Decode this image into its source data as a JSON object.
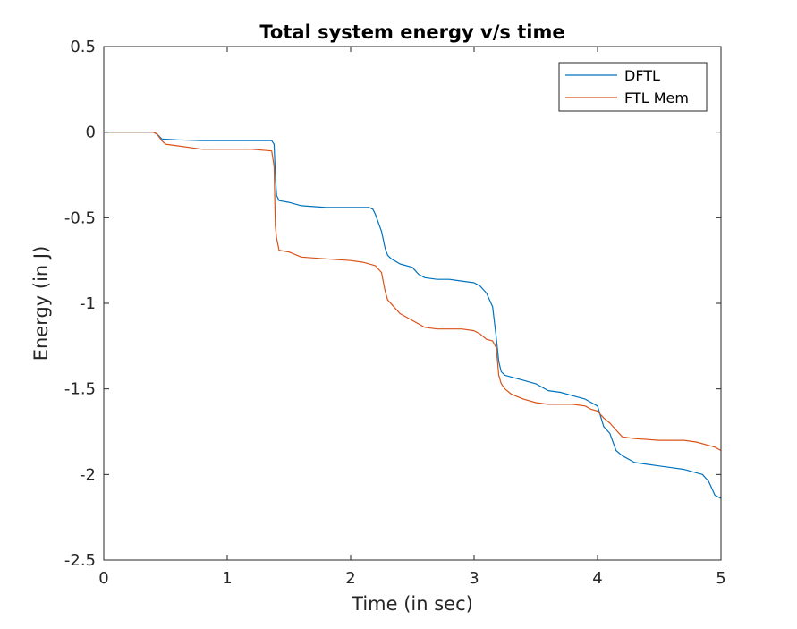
{
  "chart_data": {
    "type": "line",
    "title": "Total system energy v/s time",
    "xlabel": "Time (in sec)",
    "ylabel": "Energy (in J)",
    "xlim": [
      0,
      5
    ],
    "ylim": [
      -2.5,
      0.5
    ],
    "xticks": [
      0,
      1,
      2,
      3,
      4,
      5
    ],
    "yticks": [
      0.5,
      0,
      -0.5,
      -1,
      -1.5,
      -2,
      -2.5
    ],
    "xtick_labels": [
      "0",
      "1",
      "2",
      "3",
      "4",
      "5"
    ],
    "ytick_labels": [
      "0.5",
      "0",
      "-0.5",
      "-1",
      "-1.5",
      "-2",
      "-2.5"
    ],
    "grid": false,
    "legend_position": "top-right",
    "series": [
      {
        "name": "DFTL",
        "color": "#0072BD",
        "x": [
          0,
          0.4,
          0.43,
          0.47,
          0.6,
          0.8,
          1.0,
          1.2,
          1.36,
          1.38,
          1.39,
          1.4,
          1.42,
          1.5,
          1.6,
          1.8,
          2.0,
          2.15,
          2.18,
          2.2,
          2.25,
          2.28,
          2.3,
          2.33,
          2.4,
          2.5,
          2.55,
          2.6,
          2.7,
          2.8,
          2.9,
          3.0,
          3.05,
          3.1,
          3.15,
          3.18,
          3.2,
          3.22,
          3.25,
          3.3,
          3.4,
          3.5,
          3.6,
          3.7,
          3.8,
          3.9,
          3.95,
          4.0,
          4.05,
          4.1,
          4.15,
          4.2,
          4.3,
          4.4,
          4.5,
          4.6,
          4.7,
          4.8,
          4.85,
          4.9,
          4.95,
          5.0
        ],
        "y": [
          0,
          0,
          -0.01,
          -0.04,
          -0.045,
          -0.05,
          -0.05,
          -0.05,
          -0.05,
          -0.07,
          -0.25,
          -0.37,
          -0.4,
          -0.41,
          -0.43,
          -0.44,
          -0.44,
          -0.44,
          -0.45,
          -0.48,
          -0.58,
          -0.68,
          -0.72,
          -0.74,
          -0.77,
          -0.79,
          -0.83,
          -0.85,
          -0.86,
          -0.86,
          -0.87,
          -0.88,
          -0.9,
          -0.94,
          -1.02,
          -1.2,
          -1.34,
          -1.4,
          -1.42,
          -1.43,
          -1.45,
          -1.47,
          -1.51,
          -1.52,
          -1.54,
          -1.56,
          -1.58,
          -1.6,
          -1.72,
          -1.76,
          -1.86,
          -1.89,
          -1.93,
          -1.94,
          -1.95,
          -1.96,
          -1.97,
          -1.99,
          -2.0,
          -2.04,
          -2.12,
          -2.14
        ]
      },
      {
        "name": "FTL Mem",
        "color": "#D95319",
        "x": [
          0,
          0.4,
          0.43,
          0.47,
          0.5,
          0.6,
          0.8,
          1.0,
          1.2,
          1.36,
          1.38,
          1.39,
          1.4,
          1.42,
          1.5,
          1.6,
          1.8,
          2.0,
          2.1,
          2.2,
          2.25,
          2.28,
          2.3,
          2.35,
          2.4,
          2.5,
          2.6,
          2.7,
          2.8,
          2.9,
          3.0,
          3.05,
          3.1,
          3.15,
          3.18,
          3.2,
          3.22,
          3.25,
          3.3,
          3.4,
          3.5,
          3.6,
          3.7,
          3.8,
          3.9,
          3.95,
          4.0,
          4.05,
          4.1,
          4.15,
          4.2,
          4.3,
          4.5,
          4.7,
          4.8,
          4.9,
          4.95,
          5.0
        ],
        "y": [
          0,
          0,
          -0.01,
          -0.05,
          -0.07,
          -0.08,
          -0.1,
          -0.1,
          -0.1,
          -0.11,
          -0.2,
          -0.55,
          -0.62,
          -0.69,
          -0.7,
          -0.73,
          -0.74,
          -0.75,
          -0.76,
          -0.78,
          -0.82,
          -0.93,
          -0.98,
          -1.02,
          -1.06,
          -1.1,
          -1.14,
          -1.15,
          -1.15,
          -1.15,
          -1.16,
          -1.18,
          -1.21,
          -1.22,
          -1.26,
          -1.42,
          -1.47,
          -1.5,
          -1.53,
          -1.56,
          -1.58,
          -1.59,
          -1.59,
          -1.59,
          -1.6,
          -1.62,
          -1.63,
          -1.67,
          -1.7,
          -1.74,
          -1.78,
          -1.79,
          -1.8,
          -1.8,
          -1.81,
          -1.83,
          -1.84,
          -1.86
        ]
      }
    ]
  }
}
